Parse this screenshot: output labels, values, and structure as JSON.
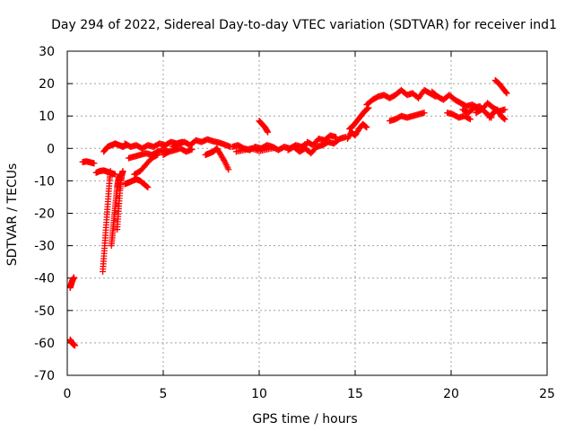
{
  "chart_data": {
    "type": "scatter",
    "title": "Day 294 of 2022, Sidereal Day-to-day VTEC variation (SDTVAR) for receiver ind1",
    "xlabel": "GPS time / hours",
    "ylabel": "SDTVAR / TECUs",
    "xlim": [
      0,
      25
    ],
    "ylim": [
      -70,
      30
    ],
    "xticks": [
      0,
      5,
      10,
      15,
      20,
      25
    ],
    "yticks": [
      -70,
      -60,
      -50,
      -40,
      -30,
      -20,
      -10,
      0,
      10,
      20,
      30
    ],
    "grid": true,
    "marker": "+",
    "color": "#ff0000",
    "series": [
      {
        "name": "SDTVAR",
        "segments": [
          {
            "x": [
              0.15,
              0.2,
              0.25,
              0.3,
              0.35,
              0.4
            ],
            "y": [
              -59,
              -59.5,
              -60,
              -60.3,
              -60.6,
              -60.8
            ]
          },
          {
            "x": [
              0.15,
              0.2,
              0.25,
              0.3,
              0.35
            ],
            "y": [
              -43,
              -42,
              -41,
              -40.3,
              -39.8
            ]
          },
          {
            "x": [
              0.8,
              1.0,
              1.2,
              1.4
            ],
            "y": [
              -4.2,
              -4.0,
              -4.3,
              -4.6
            ]
          },
          {
            "x": [
              1.5,
              1.7,
              1.9,
              2.1,
              2.3,
              2.5
            ],
            "y": [
              -7.5,
              -7.0,
              -6.8,
              -7.2,
              -7.6,
              -8.0
            ]
          },
          {
            "x": [
              1.85,
              1.9,
              1.95,
              2.0,
              2.05,
              2.1,
              2.15,
              2.2,
              2.25
            ],
            "y": [
              -38,
              -34,
              -30,
              -26,
              -22,
              -18,
              -14,
              -10,
              -7
            ]
          },
          {
            "x": [
              2.3,
              2.35,
              2.4,
              2.45,
              2.5,
              2.55,
              2.6,
              2.65,
              2.7,
              2.75
            ],
            "y": [
              -30,
              -27,
              -24,
              -21,
              -18,
              -15,
              -12,
              -10,
              -9,
              -8
            ]
          },
          {
            "x": [
              2.6,
              2.65,
              2.7,
              2.75,
              2.8,
              2.85,
              2.9
            ],
            "y": [
              -25,
              -21,
              -17,
              -13,
              -10,
              -8,
              -7
            ]
          },
          {
            "x": [
              1.9,
              2.1,
              2.3,
              2.5,
              2.7,
              2.9,
              3.1
            ],
            "y": [
              -1.0,
              0.5,
              1.0,
              1.5,
              1.0,
              0.5,
              1.2
            ]
          },
          {
            "x": [
              3.0,
              3.2,
              3.4,
              3.6,
              3.8,
              4.0,
              4.2
            ],
            "y": [
              -11,
              -10.5,
              -10,
              -9.5,
              -10,
              -11,
              -12
            ]
          },
          {
            "x": [
              3.5,
              3.8,
              4.1,
              4.4,
              4.7
            ],
            "y": [
              -8,
              -7,
              -5,
              -3,
              -2
            ]
          },
          {
            "x": [
              3.2,
              3.5,
              3.8,
              4.1,
              4.4,
              4.7,
              5.0,
              5.3
            ],
            "y": [
              -3,
              -2.5,
              -2,
              -1.5,
              -2,
              -1,
              -0.5,
              -1
            ]
          },
          {
            "x": [
              3.0,
              3.3,
              3.6,
              3.9,
              4.2,
              4.5,
              4.8,
              5.1,
              5.4,
              5.7,
              6.0
            ],
            "y": [
              1.5,
              0.5,
              1.0,
              0.0,
              1.0,
              0.5,
              1.5,
              1.0,
              2.0,
              1.5,
              2.0
            ]
          },
          {
            "x": [
              5.5,
              5.8,
              6.1,
              6.4,
              6.7,
              7.0,
              7.3,
              7.6,
              7.9,
              8.2,
              8.5
            ],
            "y": [
              0.5,
              1.5,
              2.0,
              1.0,
              2.5,
              2.0,
              2.8,
              2.2,
              1.8,
              1.2,
              0.5
            ]
          },
          {
            "x": [
              5.0,
              5.3,
              5.6,
              5.9,
              6.2,
              6.5
            ],
            "y": [
              -2.0,
              -1.0,
              -0.5,
              0.0,
              -1.0,
              -0.3
            ]
          },
          {
            "x": [
              7.2,
              7.4,
              7.6,
              7.8,
              8.0,
              8.2,
              8.4
            ],
            "y": [
              -2.0,
              -1.5,
              -1.0,
              0.0,
              -2.0,
              -4.0,
              -6.5
            ]
          },
          {
            "x": [
              8.6,
              8.9,
              9.2,
              9.5,
              9.8,
              10.1,
              10.4,
              10.7,
              11.0,
              11.3,
              11.6,
              11.9,
              12.2,
              12.5
            ],
            "y": [
              0.5,
              1.0,
              0.0,
              -0.5,
              0.5,
              0.0,
              1.0,
              0.5,
              -0.5,
              0.5,
              0.0,
              1.0,
              0.5,
              1.5
            ]
          },
          {
            "x": [
              8.8,
              9.2,
              9.6,
              10.0,
              10.4,
              10.8
            ],
            "y": [
              -1.0,
              -0.5,
              0.0,
              -0.8,
              -0.3,
              0.2
            ]
          },
          {
            "x": [
              10.0,
              10.15,
              10.3,
              10.45
            ],
            "y": [
              8.5,
              7.5,
              6.5,
              5.0
            ]
          },
          {
            "x": [
              11.5,
              11.8,
              12.1,
              12.4,
              12.7,
              13.0,
              13.3,
              13.6,
              13.9,
              14.2,
              14.5
            ],
            "y": [
              -0.5,
              0.5,
              -1.0,
              0.0,
              -1.5,
              0.5,
              1.0,
              2.0,
              1.5,
              3.0,
              3.5
            ]
          },
          {
            "x": [
              12.5,
              12.8,
              13.1,
              13.4,
              13.7,
              14.0
            ],
            "y": [
              2.0,
              1.0,
              3.0,
              2.5,
              4.0,
              3.5
            ]
          },
          {
            "x": [
              14.6,
              14.8,
              15.0,
              15.2,
              15.4,
              15.6
            ],
            "y": [
              3.0,
              5.0,
              4.0,
              6.0,
              7.5,
              6.5
            ]
          },
          {
            "x": [
              14.7,
              14.9,
              15.1,
              15.3,
              15.5,
              15.7
            ],
            "y": [
              6.0,
              7.0,
              8.5,
              10.0,
              11.5,
              12.5
            ]
          },
          {
            "x": [
              15.6,
              15.9,
              16.2,
              16.5,
              16.8,
              17.1,
              17.4,
              17.7,
              18.0,
              18.3,
              18.6,
              18.9,
              19.2
            ],
            "y": [
              13.5,
              15.0,
              16.0,
              16.5,
              15.5,
              16.5,
              18.0,
              16.5,
              17.0,
              15.5,
              18.0,
              17.0,
              16.0
            ]
          },
          {
            "x": [
              16.8,
              17.1,
              17.4,
              17.7,
              18.0,
              18.3,
              18.6
            ],
            "y": [
              8.5,
              9.0,
              10.0,
              9.5,
              10.0,
              10.5,
              11.0
            ]
          },
          {
            "x": [
              19.0,
              19.3,
              19.6,
              19.9,
              20.2,
              20.5,
              20.8,
              21.1,
              21.4
            ],
            "y": [
              17.5,
              16.0,
              15.0,
              16.5,
              15.0,
              14.0,
              13.0,
              13.5,
              12.5
            ]
          },
          {
            "x": [
              19.8,
              20.1,
              20.4,
              20.7,
              21.0
            ],
            "y": [
              11.0,
              10.5,
              9.5,
              10.0,
              9.0
            ]
          },
          {
            "x": [
              20.6,
              20.9,
              21.2,
              21.5,
              21.8,
              22.1
            ],
            "y": [
              12.0,
              11.0,
              12.5,
              13.0,
              11.0,
              9.5
            ]
          },
          {
            "x": [
              21.3,
              21.6,
              21.9,
              22.2,
              22.5,
              22.8
            ],
            "y": [
              11.0,
              12.0,
              14.0,
              12.5,
              11.5,
              12.0
            ]
          },
          {
            "x": [
              22.3,
              22.5,
              22.7,
              22.9
            ],
            "y": [
              21.0,
              20.0,
              18.5,
              17.0
            ]
          },
          {
            "x": [
              22.0,
              22.2,
              22.4,
              22.6,
              22.8
            ],
            "y": [
              9.5,
              11.0,
              12.0,
              10.0,
              9.0
            ]
          }
        ]
      }
    ]
  }
}
